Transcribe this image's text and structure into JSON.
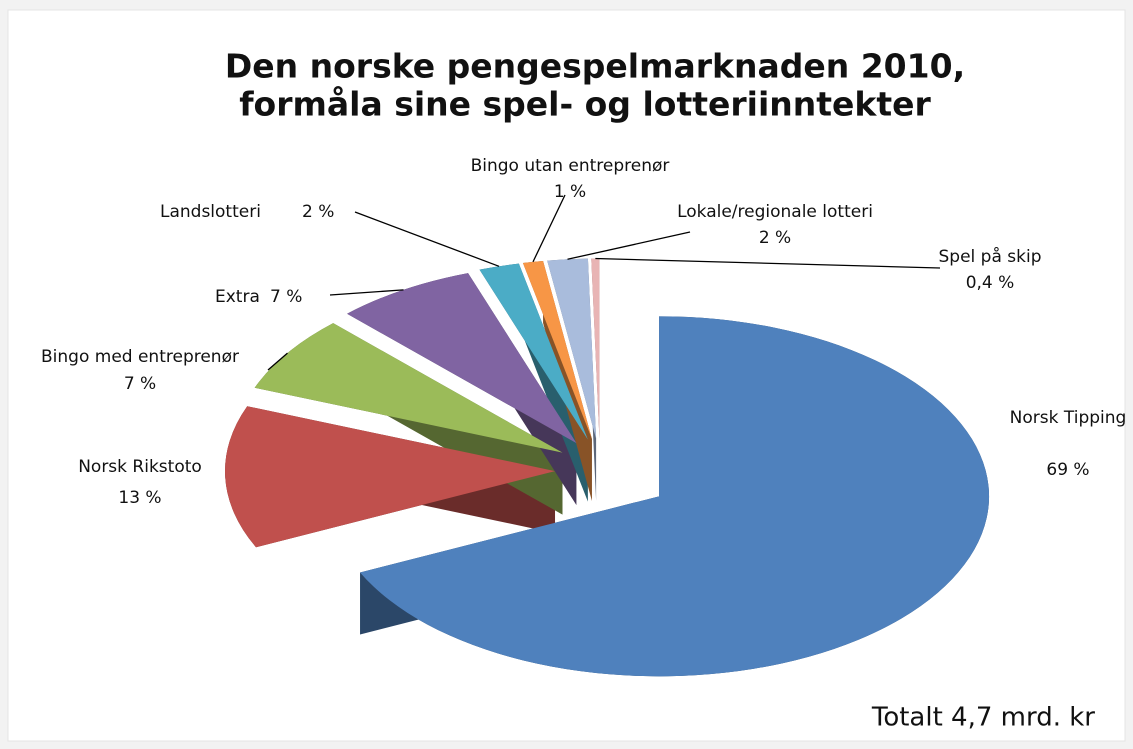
{
  "chart_data": {
    "type": "pie",
    "title": [
      "Den norske pengespelmarknaden 2010,",
      "formåla sine spel- og lotteriinntekter"
    ],
    "categories": [
      "Norsk Tipping",
      "Norsk Rikstoto",
      "Bingo med entreprenør",
      "Extra",
      "Landslotteri",
      "Bingo utan entreprenør",
      "Lokale/regionale lotteri",
      "Spel på skip"
    ],
    "values": [
      69,
      13,
      7,
      7,
      2,
      1,
      2,
      0.4
    ],
    "value_labels": [
      "69 %",
      "13 %",
      "7 %",
      "7 %",
      "2 %",
      "1 %",
      "2 %",
      "0,4 %"
    ],
    "colors": [
      "#4f81bd",
      "#c0504d",
      "#9bbb59",
      "#8064a2",
      "#4bacc6",
      "#f79646",
      "#a9bcdc",
      "#e8b4b4"
    ],
    "annotation": "Totalt 4,7 mrd. kr"
  }
}
